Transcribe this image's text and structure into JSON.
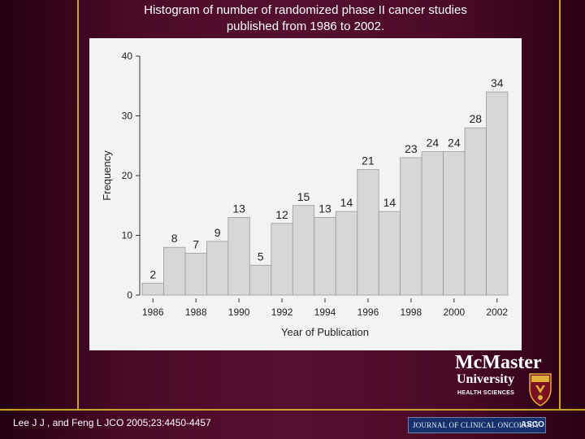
{
  "title": {
    "line1": "Histogram of number of randomized phase II cancer studies",
    "line2": "published from 1986 to 2002."
  },
  "chart_data": {
    "type": "bar",
    "categories": [
      "1986",
      "1987",
      "1988",
      "1989",
      "1990",
      "1991",
      "1992",
      "1993",
      "1994",
      "1995",
      "1996",
      "1997",
      "1998",
      "1999",
      "2000",
      "2001",
      "2002"
    ],
    "values": [
      2,
      8,
      7,
      9,
      13,
      5,
      12,
      15,
      13,
      14,
      21,
      14,
      23,
      24,
      24,
      28,
      34
    ],
    "x_tick_labels": [
      "1986",
      "1988",
      "1990",
      "1992",
      "1994",
      "1996",
      "1998",
      "2000",
      "2002"
    ],
    "y_ticks": [
      0,
      10,
      20,
      30,
      40
    ],
    "ylim": [
      0,
      40
    ],
    "xlabel": "Year of Publication",
    "ylabel": "Frequency",
    "bar_color": "#d7d7d7",
    "grid": false,
    "data_labels": true
  },
  "footer": {
    "citation": "Lee J J , and Feng L JCO 2005;23:4450-4457",
    "journal_banner": "JOURNAL OF CLINICAL ONCOLOGY",
    "journal_badge": "ASCO"
  },
  "logo": {
    "name": "McMaster",
    "subtitle": "University",
    "tagline": "HEALTH SCIENCES"
  },
  "colors": {
    "background": "#4a0a26",
    "accent_line": "#c9a227",
    "text": "#ffffff"
  }
}
